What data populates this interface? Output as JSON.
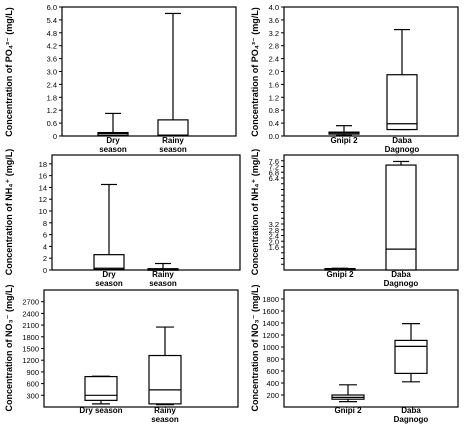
{
  "chart_data": [
    {
      "type": "box",
      "ylabel": "Concentration of PO₄³⁻ (mg/L)",
      "yticks": [
        0,
        0.6,
        1.2,
        1.8,
        2.4,
        3.0,
        3.6,
        4.2,
        4.8,
        5.4,
        6.0
      ],
      "ytick_labels": [
        "0",
        "0.6",
        "1.2",
        "1.8",
        "2.4",
        "3.0",
        "3.6",
        "4.2",
        "4.8",
        "5.4",
        "6.0"
      ],
      "ylim": [
        0,
        6.0
      ],
      "categories": [
        [
          "Dry",
          "season"
        ],
        [
          "Rainy",
          "season"
        ]
      ],
      "boxes": [
        {
          "min": 0.04,
          "q1": 0.04,
          "median": 0.12,
          "q3": 0.16,
          "max": 1.05
        },
        {
          "min": 0.04,
          "q1": 0.04,
          "median": 0.04,
          "q3": 0.75,
          "max": 5.7
        }
      ]
    },
    {
      "type": "box",
      "ylabel": "Concentration of PO₄³⁻ (mg/L)",
      "yticks": [
        0,
        0.4,
        0.8,
        1.2,
        1.6,
        2.0,
        2.4,
        2.8,
        3.2,
        3.6,
        4.0
      ],
      "ytick_labels": [
        "0.0",
        "0.4",
        "0.8",
        "1.2",
        "1.6",
        "2.0",
        "2.4",
        "2.8",
        "3.2",
        "3.6",
        "4.0"
      ],
      "ylim": [
        0,
        4.0
      ],
      "categories": [
        [
          "Gnipi 2"
        ],
        [
          "Daba",
          "Dagnogo"
        ]
      ],
      "boxes": [
        {
          "min": 0.02,
          "q1": 0.06,
          "median": 0.1,
          "q3": 0.12,
          "max": 0.32
        },
        {
          "min": 0.2,
          "q1": 0.2,
          "median": 0.38,
          "q3": 1.9,
          "max": 3.3
        }
      ]
    },
    {
      "type": "box",
      "ylabel": "Concentration of NH₄⁺ (mg/L)",
      "yticks": [
        0,
        2,
        4,
        6,
        8,
        10,
        12,
        14,
        16,
        18
      ],
      "ytick_labels": [
        "0",
        "2",
        "4",
        "6",
        "8",
        "10",
        "12",
        "14",
        "16",
        "18"
      ],
      "ylim": [
        0,
        19.5
      ],
      "categories": [
        [
          "Dry",
          "season"
        ],
        [
          "Rainy",
          "season"
        ]
      ],
      "boxes": [
        {
          "min": 0.1,
          "q1": 0.1,
          "median": 0.3,
          "q3": 2.6,
          "max": 14.5
        },
        {
          "min": 0.05,
          "q1": 0.05,
          "median": 0.12,
          "q3": 0.22,
          "max": 1.1
        }
      ]
    },
    {
      "type": "box",
      "ylabel": "Concentration of NH₄⁺ (mg/L)",
      "yticks": [
        0.4,
        0.8,
        1.2,
        1.6,
        2.0,
        2.4,
        2.8,
        3.2,
        3.6,
        4.0,
        4.4,
        4.8,
        5.2,
        5.6,
        6.0,
        6.4,
        6.8,
        7.2,
        7.6
      ],
      "ytick_labels": [
        "",
        "",
        "",
        "1.6",
        "2.0",
        "2.4",
        "2.8",
        "3.2",
        "",
        "",
        "",
        "",
        "",
        "",
        "",
        "6.4",
        "6.8",
        "7.2",
        "7.6"
      ],
      "ylim": [
        0,
        8.0
      ],
      "categories": [
        [
          "Gnipi 2"
        ],
        [
          "Daba",
          "Dagnogo"
        ]
      ],
      "boxes": [
        {
          "min": 0.02,
          "q1": 0.02,
          "median": 0.08,
          "q3": 0.1,
          "max": 0.12
        },
        {
          "min": 0.0,
          "q1": 0.0,
          "median": 1.45,
          "q3": 7.3,
          "max": 7.55
        }
      ]
    },
    {
      "type": "box",
      "ylabel": "Concentration of NO₃⁻ (mg/L)",
      "yticks": [
        300,
        600,
        900,
        1200,
        1500,
        1800,
        2100,
        2400,
        2700
      ],
      "ytick_labels": [
        "300",
        "600",
        "900",
        "1200",
        "1500",
        "1800",
        "2100",
        "2400",
        "2700"
      ],
      "ylim": [
        0,
        3000
      ],
      "categories": [
        [
          "Dry season"
        ],
        [
          "Rainy",
          "season"
        ]
      ],
      "boxes": [
        {
          "min": 80,
          "q1": 170,
          "median": 300,
          "q3": 780,
          "max": 790
        },
        {
          "min": 60,
          "q1": 80,
          "median": 440,
          "q3": 1320,
          "max": 2050
        }
      ]
    },
    {
      "type": "box",
      "ylabel": "Concentration of NO₃⁻ (mg/L)",
      "yticks": [
        200,
        400,
        600,
        800,
        1000,
        1200,
        1400,
        1600,
        1800
      ],
      "ytick_labels": [
        "200",
        "400",
        "600",
        "800",
        "1000",
        "1200",
        "1400",
        "1600",
        "1800"
      ],
      "ylim": [
        0,
        1950
      ],
      "categories": [
        [
          "Gnipi 2"
        ],
        [
          "Daba",
          "Dagnogo"
        ]
      ],
      "boxes": [
        {
          "min": 90,
          "q1": 130,
          "median": 160,
          "q3": 200,
          "max": 370
        },
        {
          "min": 420,
          "q1": 560,
          "median": 1010,
          "q3": 1110,
          "max": 1390
        }
      ]
    }
  ]
}
